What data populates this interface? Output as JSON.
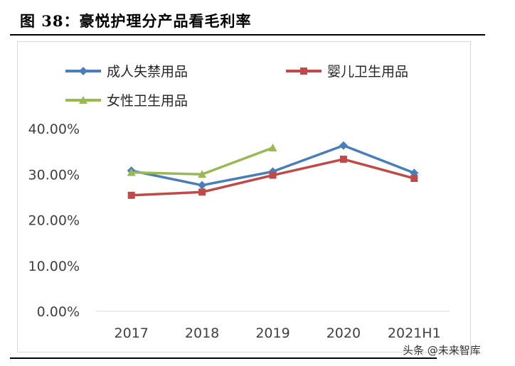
{
  "figure": {
    "title": "图 38：豪悦护理分产品看毛利率"
  },
  "watermark": "头条 @未来智库",
  "chart_data": {
    "type": "line",
    "title": "",
    "xlabel": "",
    "ylabel": "",
    "categories": [
      "2017",
      "2018",
      "2019",
      "2020",
      "2021H1"
    ],
    "ylim": [
      0,
      40
    ],
    "yticks": [
      "0.00%",
      "10.00%",
      "20.00%",
      "30.00%",
      "40.00%"
    ],
    "grid": false,
    "legend_position": "top",
    "series": [
      {
        "name": "成人失禁用品",
        "color": "#4a7ebb",
        "marker": "diamond",
        "values": [
          30.8,
          27.6,
          30.6,
          36.3,
          30.3
        ]
      },
      {
        "name": "婴儿卫生用品",
        "color": "#be4b48",
        "marker": "square",
        "values": [
          25.4,
          26.1,
          29.8,
          33.3,
          29.1
        ]
      },
      {
        "name": "女性卫生用品",
        "color": "#98b954",
        "marker": "triangle",
        "values": [
          30.4,
          30.0,
          35.8,
          null,
          null
        ]
      }
    ]
  }
}
